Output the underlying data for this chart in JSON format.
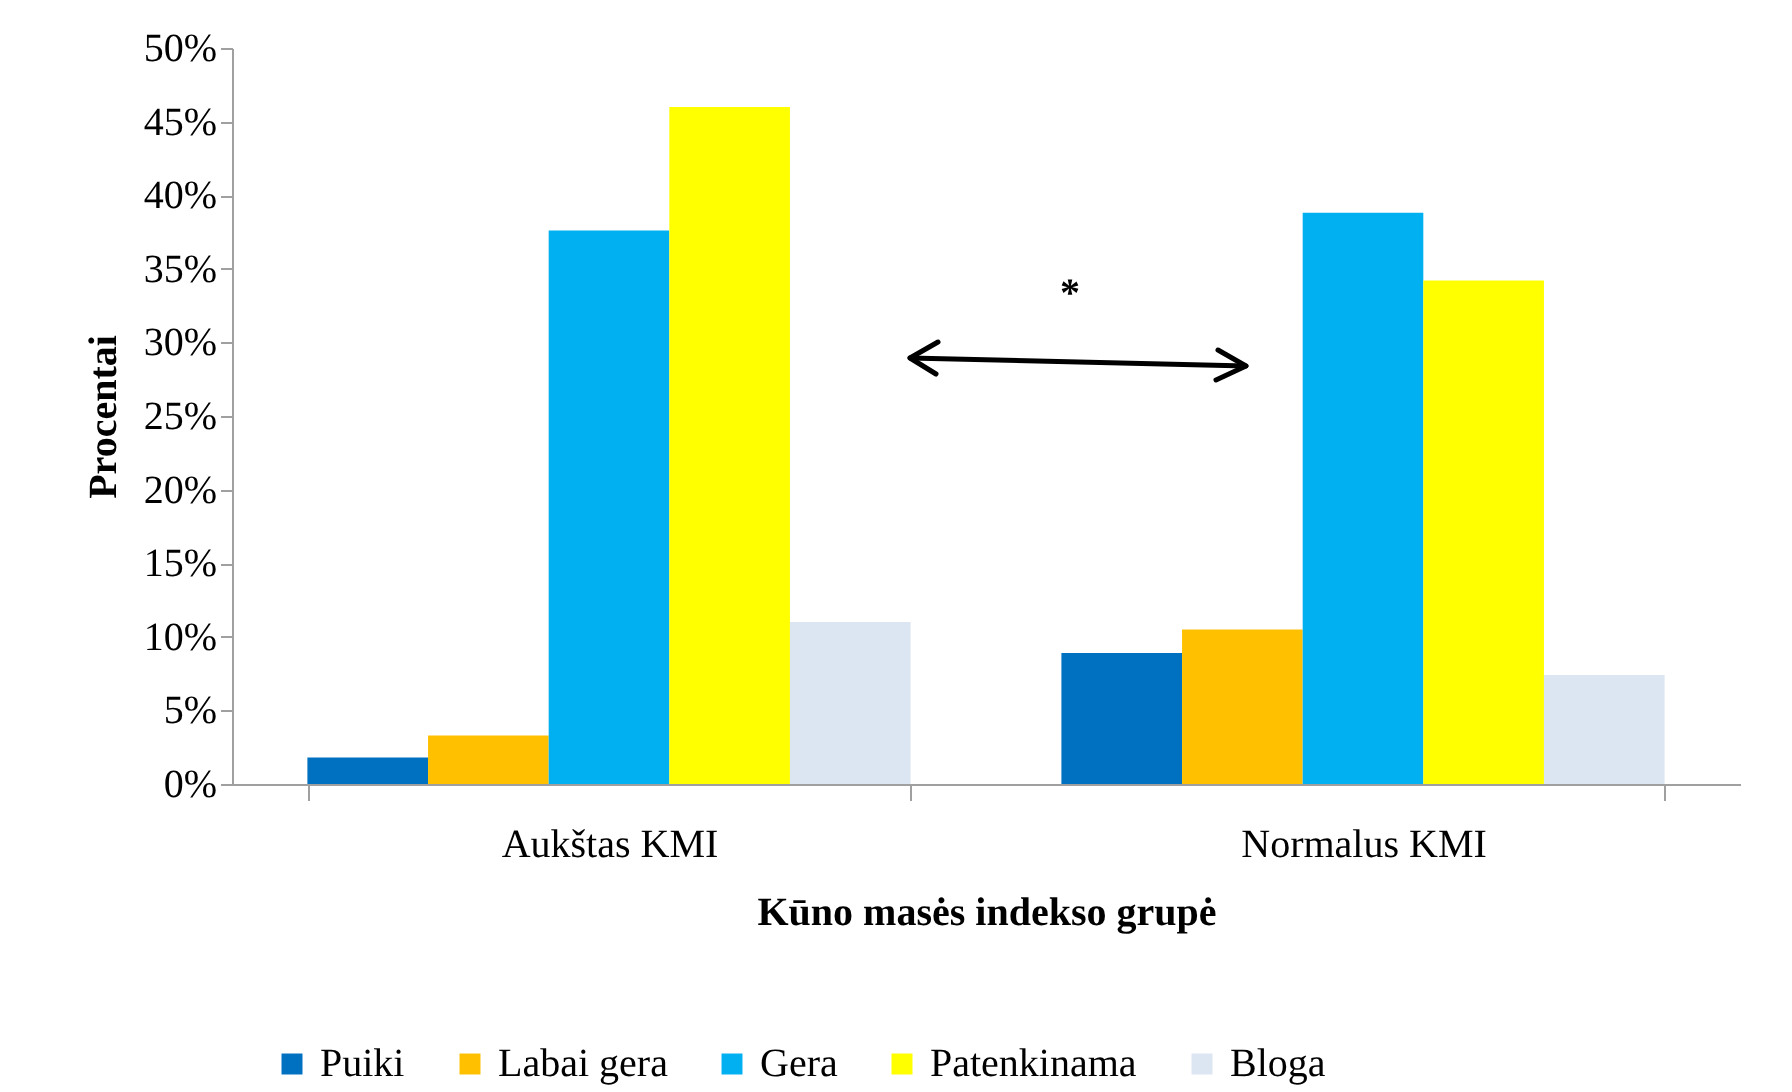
{
  "chart_data": {
    "type": "bar",
    "xlabel": "Kūno masės indekso grupė",
    "ylabel": "Procentai",
    "categories": [
      "Aukštas KMI",
      "Normalus KMI"
    ],
    "series": [
      {
        "name": "Puiki",
        "color": "#0070c0",
        "values": [
          1.8,
          8.9
        ]
      },
      {
        "name": "Labai gera",
        "color": "#ffc000",
        "values": [
          3.3,
          10.5
        ]
      },
      {
        "name": "Gera",
        "color": "#00b0f0",
        "values": [
          37.6,
          38.8
        ]
      },
      {
        "name": "Patenkinama",
        "color": "#ffff00",
        "values": [
          46.0,
          34.2
        ]
      },
      {
        "name": "Bloga",
        "color": "#dce6f2",
        "values": [
          11.0,
          7.4
        ]
      }
    ],
    "ylim": [
      0,
      50
    ],
    "yticks": [
      {
        "value": 0,
        "label": "0%"
      },
      {
        "value": 5,
        "label": "5%"
      },
      {
        "value": 10,
        "label": "10%"
      },
      {
        "value": 15,
        "label": "15%"
      },
      {
        "value": 20,
        "label": "20%"
      },
      {
        "value": 25,
        "label": "25%"
      },
      {
        "value": 30,
        "label": "30%"
      },
      {
        "value": 35,
        "label": "35%"
      },
      {
        "value": 40,
        "label": "40%"
      },
      {
        "value": 45,
        "label": "45%"
      },
      {
        "value": 50,
        "label": "50%"
      }
    ],
    "annotations": [
      "*"
    ],
    "legend": "bottom",
    "grid": false
  }
}
